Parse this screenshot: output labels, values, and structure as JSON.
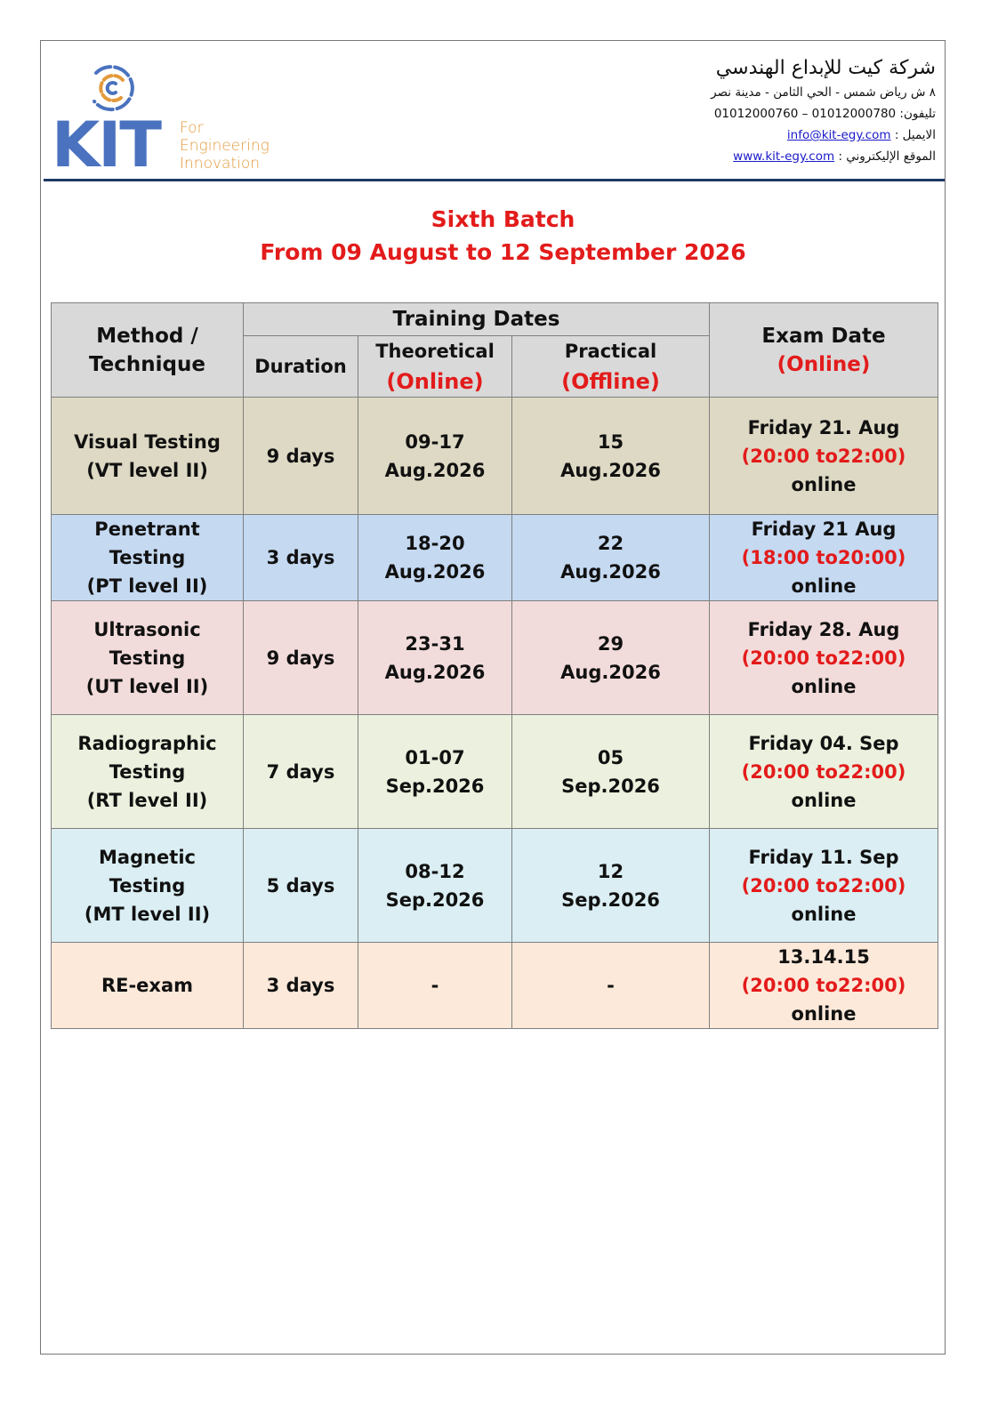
{
  "header": {
    "logo": {
      "brand": "KIT",
      "tagline": [
        "For",
        "Engineering",
        "Innovation"
      ],
      "colors": {
        "blue": "#4a72bf",
        "orange": "#e39a3c"
      }
    },
    "company_name": "شركة كيت للإبداع الهندسي",
    "address": "٨ ش رياض شمس - الحي الثامن - مدينة نصر",
    "phone_label": "تليفون:",
    "phone": "01012000760 – 01012000780",
    "email_label": "الايميل :",
    "email": "info@kit-egy.com",
    "website_label": "الموقع الإليكتروني :",
    "website": "www.kit-egy.com"
  },
  "title": {
    "line1": "Sixth Batch",
    "line2": "From 09 August to 12 September 2026",
    "color": "#e31b1b"
  },
  "table": {
    "headers": {
      "method": [
        "Method /",
        "Technique"
      ],
      "training_dates": "Training Dates",
      "duration": "Duration",
      "theoretical": "Theoretical",
      "theoretical_mode": "(Online)",
      "practical": "Practical",
      "practical_mode": "(Offline)",
      "exam": "Exam Date",
      "exam_mode": "(Online)"
    },
    "rows": [
      {
        "method": [
          "Visual Testing",
          "(VT level II)"
        ],
        "duration": "9 days",
        "theoretical": [
          "09-17",
          "Aug.2026"
        ],
        "practical": [
          "15",
          "Aug.2026"
        ],
        "exam": [
          "Friday 21. Aug",
          "(20:00 to22:00)",
          "online"
        ],
        "color": "#ddd9c4"
      },
      {
        "method": [
          "Penetrant",
          "Testing",
          "(PT level II)"
        ],
        "duration": "3 days",
        "theoretical": [
          "18-20",
          "Aug.2026"
        ],
        "practical": [
          "22",
          "Aug.2026"
        ],
        "exam": [
          "Friday 21 Aug",
          "(18:00 to20:00)",
          "online"
        ],
        "color": "#c5d9f1"
      },
      {
        "method": [
          "Ultrasonic",
          "Testing",
          "(UT level II)"
        ],
        "duration": "9 days",
        "theoretical": [
          "23-31",
          "Aug.2026"
        ],
        "practical": [
          "29",
          "Aug.2026"
        ],
        "exam": [
          "Friday 28. Aug",
          "(20:00 to22:00)",
          "online"
        ],
        "color": "#f2dcdb"
      },
      {
        "method": [
          "Radiographic",
          "Testing",
          "(RT level II)"
        ],
        "duration": "7 days",
        "theoretical": [
          "01-07",
          "Sep.2026"
        ],
        "practical": [
          "05",
          "Sep.2026"
        ],
        "exam": [
          "Friday 04. Sep",
          "(20:00 to22:00)",
          "online"
        ],
        "color": "#ebf1de"
      },
      {
        "method": [
          "Magnetic",
          "Testing",
          "(MT level II)"
        ],
        "duration": "5 days",
        "theoretical": [
          "08-12",
          "Sep.2026"
        ],
        "practical": [
          "12",
          "Sep.2026"
        ],
        "exam": [
          "Friday 11. Sep",
          "(20:00 to22:00)",
          "online"
        ],
        "color": "#daeef3"
      },
      {
        "method": [
          "RE-exam"
        ],
        "duration": "3 days",
        "theoretical": [
          "-"
        ],
        "practical": [
          "-"
        ],
        "exam": [
          "13.14.15",
          "(20:00 to22:00)",
          "online"
        ],
        "color": "#fde9d9"
      }
    ]
  }
}
